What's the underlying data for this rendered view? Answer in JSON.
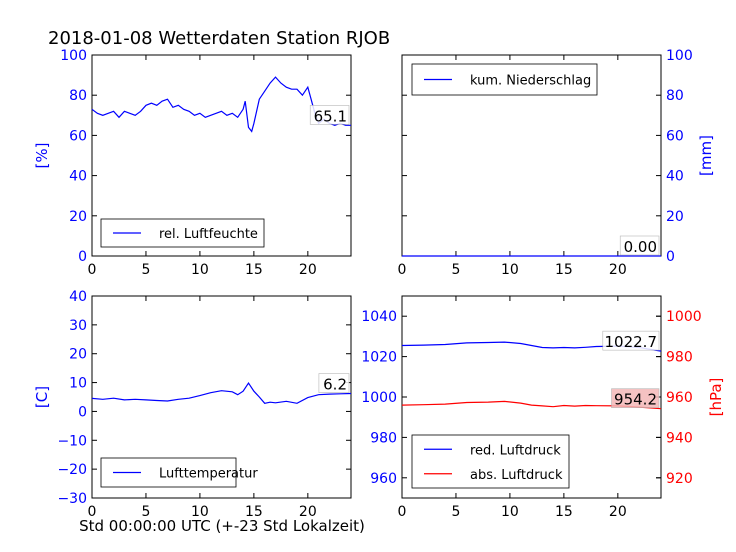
{
  "title": "2018-01-08 Wetterdaten Station RJOB",
  "xlabel": "Std 00:00:00 UTC (+-23 Std Lokalzeit)",
  "colors": {
    "blue": "#0000ff",
    "red": "#ff0000",
    "black": "#000000",
    "redLabelBg": "#f4b8b8"
  },
  "chart_data": [
    {
      "type": "line",
      "panel": "top-left",
      "xlim": [
        0,
        24
      ],
      "ylim": [
        0,
        100
      ],
      "xticks": [
        0,
        5,
        10,
        15,
        20
      ],
      "yticks": [
        0,
        20,
        40,
        60,
        80,
        100
      ],
      "ylabel": "[%]",
      "ylabel_side": "left",
      "ylabel_color": "#0000ff",
      "legend": {
        "position": "lower-left",
        "entries": [
          {
            "label": "rel. Luftfeuchte",
            "color": "#0000ff"
          }
        ]
      },
      "last_value": "65.1",
      "series": [
        {
          "name": "rel. Luftfeuchte",
          "color": "#0000ff",
          "x": [
            0,
            0.5,
            1,
            1.5,
            2,
            2.5,
            3,
            3.5,
            4,
            4.5,
            5,
            5.5,
            6,
            6.5,
            7,
            7.5,
            8,
            8.5,
            9,
            9.5,
            10,
            10.5,
            11,
            11.5,
            12,
            12.5,
            13,
            13.5,
            14,
            14.2,
            14.5,
            14.8,
            15,
            15.5,
            16,
            16.5,
            17,
            17.5,
            18,
            18.5,
            19,
            19.5,
            20,
            20.3,
            20.7,
            21,
            21.5,
            22,
            22.5,
            23,
            23.5,
            24
          ],
          "y": [
            73,
            71,
            70,
            71,
            72,
            69,
            72,
            71,
            70,
            72,
            75,
            76,
            75,
            77,
            78,
            74,
            75,
            73,
            72,
            70,
            71,
            69,
            70,
            71,
            72,
            70,
            71,
            69,
            73,
            77,
            64,
            62,
            66,
            78,
            82,
            86,
            89,
            86,
            84,
            83,
            83,
            80,
            84,
            78,
            70,
            66,
            68,
            66,
            65,
            66,
            65,
            65
          ]
        }
      ]
    },
    {
      "type": "line",
      "panel": "top-right",
      "xlim": [
        0,
        24
      ],
      "ylim": [
        0,
        100
      ],
      "xticks": [
        0,
        5,
        10,
        15,
        20
      ],
      "yticks": [
        0,
        20,
        40,
        60,
        80,
        100
      ],
      "ylabel": "[mm]",
      "ylabel_side": "right",
      "ylabel_color": "#0000ff",
      "legend": {
        "position": "upper-left",
        "entries": [
          {
            "label": "kum. Niederschlag",
            "color": "#0000ff"
          }
        ]
      },
      "last_value": "0.00",
      "series": [
        {
          "name": "kum. Niederschlag",
          "color": "#0000ff",
          "x": [
            0,
            6,
            12,
            18,
            24
          ],
          "y": [
            0,
            0,
            0,
            0,
            0
          ]
        }
      ]
    },
    {
      "type": "line",
      "panel": "bottom-left",
      "xlim": [
        0,
        24
      ],
      "ylim": [
        -30,
        40
      ],
      "xticks": [
        0,
        5,
        10,
        15,
        20
      ],
      "yticks": [
        -30,
        -20,
        -10,
        0,
        10,
        20,
        30,
        40
      ],
      "ylabel": "[C]",
      "ylabel_side": "left",
      "ylabel_color": "#0000ff",
      "legend": {
        "position": "lower-left",
        "entries": [
          {
            "label": "Lufttemperatur",
            "color": "#0000ff"
          }
        ]
      },
      "last_value": "6.2",
      "series": [
        {
          "name": "Lufttemperatur",
          "color": "#0000ff",
          "x": [
            0,
            1,
            2,
            3,
            4,
            5,
            6,
            7,
            8,
            9,
            10,
            11,
            12,
            13,
            13.5,
            14,
            14.5,
            15,
            15.5,
            16,
            16.5,
            17,
            18,
            19,
            20,
            21,
            22,
            23,
            24
          ],
          "y": [
            4.5,
            4.2,
            4.6,
            4.0,
            4.2,
            4.0,
            3.8,
            3.6,
            4.2,
            4.6,
            5.5,
            6.5,
            7.2,
            6.8,
            5.8,
            7.0,
            9.8,
            7.0,
            5.0,
            2.8,
            3.2,
            3.0,
            3.5,
            2.8,
            4.8,
            5.8,
            6.0,
            6.1,
            6.2
          ]
        }
      ]
    },
    {
      "type": "line",
      "panel": "bottom-right",
      "xlim": [
        0,
        24
      ],
      "ylim": [
        950,
        1050
      ],
      "xticks": [
        0,
        5,
        10,
        15,
        20
      ],
      "yticks": [
        960,
        980,
        1000,
        1020,
        1040
      ],
      "y2lim": [
        910,
        1010
      ],
      "y2ticks": [
        920,
        940,
        960,
        980,
        1000
      ],
      "ylabel": "[hPa]",
      "ylabel_side": "right",
      "ylabel_color": "#ff0000",
      "legend": {
        "position": "lower-left",
        "entries": [
          {
            "label": "red. Luftdruck",
            "color": "#0000ff"
          },
          {
            "label": "abs. Luftdruck",
            "color": "#ff0000"
          }
        ]
      },
      "series": [
        {
          "name": "red. Luftdruck",
          "color": "#0000ff",
          "axis": "left",
          "last_value": "1022.7",
          "x": [
            0,
            2,
            4,
            6,
            8,
            9.5,
            11,
            12,
            13,
            14,
            15,
            16,
            17,
            18,
            20,
            22,
            24
          ],
          "y": [
            1025.5,
            1025.7,
            1026.0,
            1026.8,
            1027.0,
            1027.2,
            1026.5,
            1025.5,
            1024.5,
            1024.3,
            1024.5,
            1024.3,
            1024.6,
            1025.0,
            1025.2,
            1024.5,
            1022.7
          ]
        },
        {
          "name": "abs. Luftdruck",
          "color": "#ff0000",
          "axis": "right",
          "last_value": "954.2",
          "x": [
            0,
            2,
            4,
            6,
            8,
            9.5,
            11,
            12,
            13,
            14,
            15,
            16,
            17,
            18,
            20,
            22,
            24
          ],
          "y": [
            956.0,
            956.2,
            956.5,
            957.3,
            957.5,
            957.8,
            957.0,
            956.0,
            955.6,
            955.2,
            955.8,
            955.5,
            955.8,
            955.7,
            955.6,
            955.0,
            954.2
          ]
        }
      ]
    }
  ]
}
